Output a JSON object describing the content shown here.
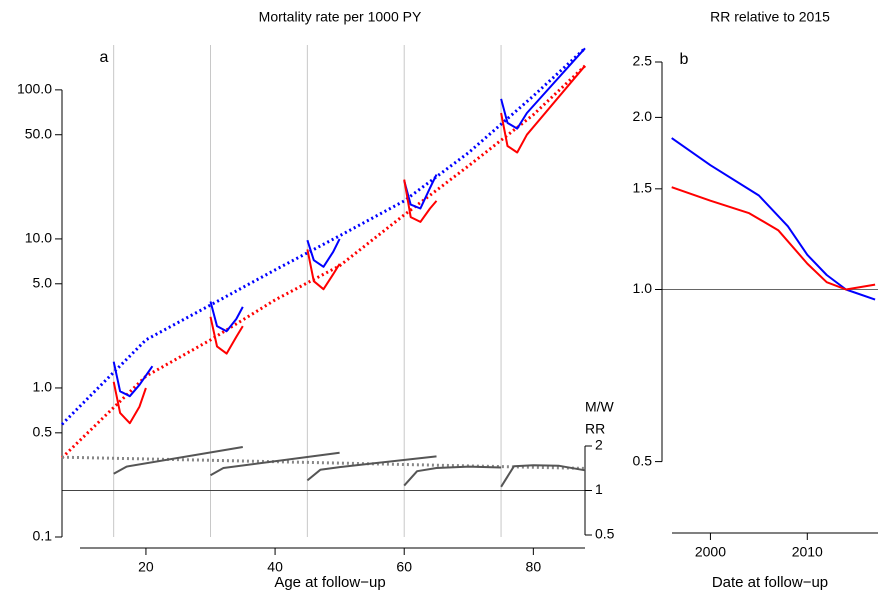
{
  "chart_data": [
    {
      "type": "line",
      "title": "Mortality rate per 1000 PY",
      "panel": "a",
      "xlabel": "Age at follow−up",
      "xlim": [
        7,
        88
      ],
      "xticks": [
        20,
        40,
        60,
        80
      ],
      "ylog": true,
      "ylim": [
        0.1,
        200
      ],
      "yticks": [
        0.1,
        0.5,
        {
          "value": 1,
          "label": "1.0"
        },
        {
          "value": 5,
          "label": "5.0"
        },
        {
          "value": 10,
          "label": "10.0"
        },
        {
          "value": 50,
          "label": "50.0"
        },
        {
          "value": 100,
          "label": "100.0"
        }
      ],
      "y2label": [
        "M/W",
        "RR"
      ],
      "y2log": true,
      "y2lim": [
        0.5,
        2
      ],
      "y2ticks": [
        0.5,
        1,
        2
      ],
      "y2hline": 1,
      "vlines": [
        15,
        30,
        45,
        60,
        75
      ],
      "series": [
        {
          "color": "#0000ff",
          "dash": "dotted",
          "width": 3,
          "x": [
            7,
            20,
            30,
            40,
            50,
            60,
            70,
            80,
            88
          ],
          "values": [
            0.57,
            2.1,
            3.6,
            6.2,
            10.5,
            18,
            38,
            91,
            190
          ]
        },
        {
          "color": "#ff0000",
          "dash": "dotted",
          "width": 3,
          "x": [
            7,
            20,
            30,
            40,
            50,
            60,
            70,
            80,
            88
          ],
          "values": [
            0.34,
            1.2,
            2.1,
            3.9,
            6.6,
            14.5,
            31,
            68,
            145
          ]
        },
        {
          "color": "#0000ff",
          "dash": "solid",
          "width": 2,
          "x": [
            15,
            16,
            17.5,
            19,
            21,
            null,
            30,
            31,
            32.5,
            34,
            35,
            null,
            45,
            46,
            47.5,
            49,
            50,
            null,
            60,
            61,
            62.5,
            64,
            65,
            null,
            75,
            76,
            77.5,
            79,
            88
          ],
          "values": [
            1.5,
            0.95,
            0.88,
            1.05,
            1.4,
            null,
            3.8,
            2.6,
            2.4,
            2.9,
            3.5,
            null,
            9.8,
            7.2,
            6.5,
            8.2,
            10,
            null,
            24.6,
            17,
            16,
            22,
            27,
            null,
            87,
            60,
            55,
            70,
            190
          ]
        },
        {
          "color": "#ff0000",
          "dash": "solid",
          "width": 2,
          "x": [
            15,
            16,
            17.5,
            19,
            20,
            null,
            30,
            31,
            32.5,
            34,
            35,
            null,
            45,
            46,
            47.5,
            49,
            50,
            null,
            60,
            61,
            62.5,
            64,
            65,
            null,
            75,
            76,
            77.5,
            79,
            88
          ],
          "values": [
            1.1,
            0.68,
            0.58,
            0.75,
            1.0,
            null,
            3.0,
            1.9,
            1.7,
            2.2,
            2.6,
            null,
            8.5,
            5.2,
            4.6,
            5.8,
            6.8,
            null,
            25,
            14,
            13,
            16,
            18,
            null,
            70,
            42,
            38,
            50,
            145
          ]
        },
        {
          "color": "#888888",
          "dash": "dotted",
          "width": 3,
          "axis": "y2",
          "x": [
            7,
            30,
            60,
            88
          ],
          "values": [
            1.68,
            1.6,
            1.5,
            1.41
          ]
        },
        {
          "color": "#555555",
          "dash": "solid",
          "width": 2,
          "axis": "y2",
          "x": [
            15,
            17,
            35,
            null,
            30,
            32,
            50,
            null,
            45,
            47,
            50,
            65,
            null,
            60,
            62,
            65,
            70,
            75,
            null,
            75,
            77,
            80,
            84,
            88
          ],
          "values": [
            1.3,
            1.45,
            1.97,
            null,
            1.27,
            1.42,
            1.8,
            null,
            1.17,
            1.38,
            1.44,
            1.7,
            null,
            1.08,
            1.35,
            1.42,
            1.45,
            1.43,
            null,
            1.06,
            1.46,
            1.48,
            1.47,
            1.37
          ]
        }
      ]
    },
    {
      "type": "line",
      "title": "RR relative to 2015",
      "panel": "b",
      "xlabel": "Date at follow−up",
      "xlim": [
        1995,
        2017.3
      ],
      "xticks": [
        2000,
        2010
      ],
      "ylog": true,
      "ylim": [
        0.4,
        2.5
      ],
      "yticks": [
        0.5,
        {
          "value": 1,
          "label": "1.0"
        },
        1.5,
        {
          "value": 2,
          "label": "2.0"
        },
        2.5
      ],
      "hline": 1,
      "series": [
        {
          "color": "#0000ff",
          "dash": "solid",
          "width": 2,
          "x": [
            1996,
            2000,
            2005,
            2008,
            2010,
            2012,
            2014,
            2017
          ],
          "values": [
            1.84,
            1.65,
            1.46,
            1.29,
            1.15,
            1.06,
            1.0,
            0.96
          ]
        },
        {
          "color": "#ff0000",
          "dash": "solid",
          "width": 2,
          "x": [
            1996,
            2000,
            2004,
            2007,
            2010,
            2012,
            2014,
            2017
          ],
          "values": [
            1.51,
            1.43,
            1.36,
            1.27,
            1.11,
            1.03,
            1.0,
            1.02
          ]
        }
      ]
    }
  ]
}
